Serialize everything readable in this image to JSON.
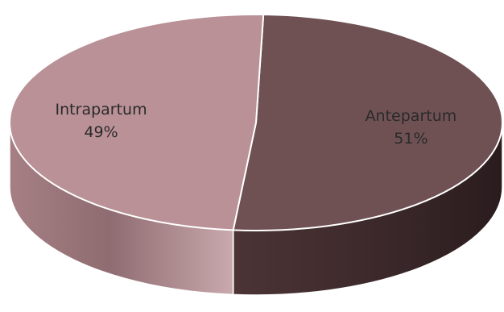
{
  "chart_data": {
    "type": "pie",
    "style": "3d",
    "slices": [
      {
        "label": "Antepartum",
        "value": 51,
        "display": "51%",
        "color": "#6f5154"
      },
      {
        "label": "Intrapartum",
        "value": 49,
        "display": "49%",
        "color": "#b99197"
      }
    ],
    "legend": "none"
  }
}
